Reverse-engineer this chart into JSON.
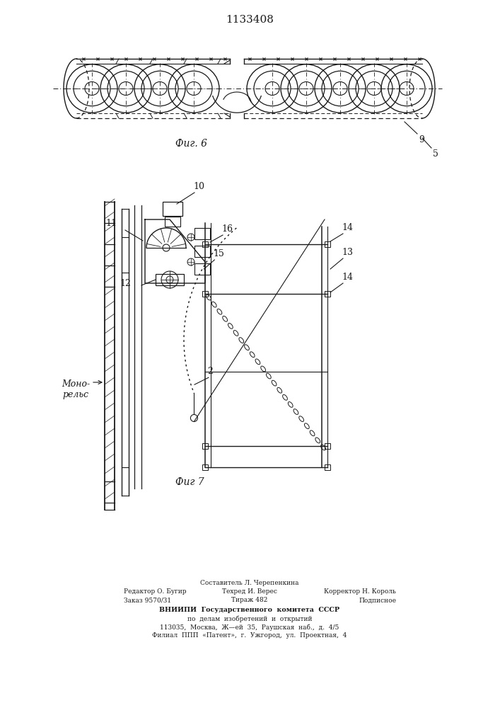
{
  "title": "1133408",
  "fig6_label": "Фиг. 6",
  "fig7_label": "Фиг 7",
  "label_9": "9",
  "label_5": "5",
  "label_10": "10",
  "label_15": "15",
  "label_11": "11",
  "label_12": "12",
  "label_13": "13",
  "label_14": "14",
  "label_16": "16",
  "label_2": "2",
  "label_mono": "Моно-\nрельс",
  "footer_col1_line1": "Редактор О. Бугир",
  "footer_col1_line2": "Заказ 9570/31",
  "footer_col2_line1": "Составитель Л. Черепенкина",
  "footer_col2_line2": "Техред И. Верес",
  "footer_col2_line3": "Тираж 482",
  "footer_col3_line1": "",
  "footer_col3_line2": "Корректор Н. Король",
  "footer_col3_line3": "Подписное",
  "footer_vniip1": "ВНИИПИ  Государственного  комитета  СССР",
  "footer_vniip2": "по  делам  изобретений  и  открытий",
  "footer_vniip3": "113035,  Москва,  Ж—ей  35,  Раушская  наб.,  д.  4/5",
  "footer_vniip4": "Филиал  ППП  «Патент»,  г.  Ужгород,  ул.  Проектная,  4",
  "bg_color": "#ffffff",
  "line_color": "#1a1a1a"
}
